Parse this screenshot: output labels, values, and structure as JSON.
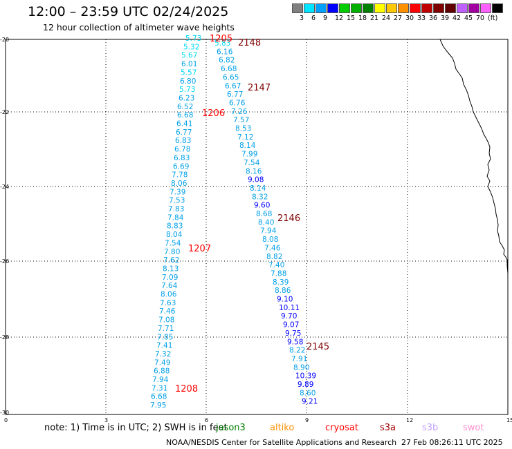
{
  "header": {
    "title": "12:00 – 23:59 UTC 02/24/2025",
    "subtitle": "12 hour collection of altimeter wave heights"
  },
  "legend": {
    "colors": [
      "#808080",
      "#00e5ff",
      "#00a0ff",
      "#0000ff",
      "#00cc00",
      "#00b000",
      "#008000",
      "#ffff00",
      "#ffc800",
      "#ff9000",
      "#ff0000",
      "#c00000",
      "#800000",
      "#600000",
      "#c060ff",
      "#a000a0",
      "#ff60ff",
      "#000000"
    ],
    "ticks": [
      "3",
      "6",
      "9",
      "12",
      "15",
      "18",
      "21",
      "24",
      "27",
      "30",
      "33",
      "36",
      "39",
      "42",
      "45",
      "70",
      "(ft)"
    ]
  },
  "axes": {
    "y_ticks": [
      "-20",
      "-22",
      "-24",
      "-26",
      "-28",
      "-30"
    ],
    "x_ticks": [
      "0",
      "3",
      "6",
      "9",
      "12",
      "15"
    ]
  },
  "track_labels": [
    "1205",
    "2148",
    "2147",
    "1206",
    "2146",
    "1207",
    "2145",
    "1208"
  ],
  "readings": {
    "track_west": [
      "5.73",
      "5.32",
      "5.67",
      "6.01",
      "5.57",
      "6.80",
      "5.73",
      "6.23",
      "6.52",
      "6.68",
      "6.41",
      "6.77",
      "6.83",
      "6.78",
      "6.83",
      "6.69",
      "7.78",
      "8.06",
      "7.39",
      "7.53",
      "7.83",
      "7.84",
      "8.83",
      "8.04",
      "7.54",
      "7.80",
      "7.62",
      "8.13",
      "7.09",
      "7.64",
      "8.06",
      "7.63",
      "7.46",
      "7.08",
      "7.71",
      "7.85",
      "7.41",
      "7.32",
      "7.49",
      "6.88",
      "7.94",
      "7.31",
      "6.68",
      "7.95"
    ],
    "track_east": [
      "5.83",
      "6.16",
      "6.82",
      "6.68",
      "6.65",
      "6.67",
      "6.77",
      "6.76",
      "7.26",
      "7.57",
      "8.53",
      "7.12",
      "8.14",
      "7.99",
      "7.54",
      "8.16",
      "9.08",
      "8.14",
      "8.32",
      "9.60",
      "8.68",
      "8.40",
      "7.94",
      "8.08",
      "7.46",
      "8.82",
      "7.40",
      "7.88",
      "8.39",
      "8.86",
      "9.10",
      "10.11",
      "9.70",
      "9.07",
      "9.75",
      "9.58",
      "8.22",
      "7.91",
      "8.90",
      "10.39",
      "9.89",
      "8.60",
      "9.21"
    ]
  },
  "footer": {
    "note": "note: 1) Time is in UTC; 2) SWH is in feet",
    "satellites": [
      "jason3",
      "altiko",
      "cryosat",
      "s3a",
      "s3b",
      "swot"
    ],
    "satellite_colors": [
      "#008000",
      "#ff9000",
      "#ff0000",
      "#a00000",
      "#c0a0ff",
      "#ff90d0"
    ],
    "credit": "NOAA/NESDIS Center for Satellite Applications and Research",
    "timestamp": "27 Feb 08:26:11 UTC 2025"
  }
}
